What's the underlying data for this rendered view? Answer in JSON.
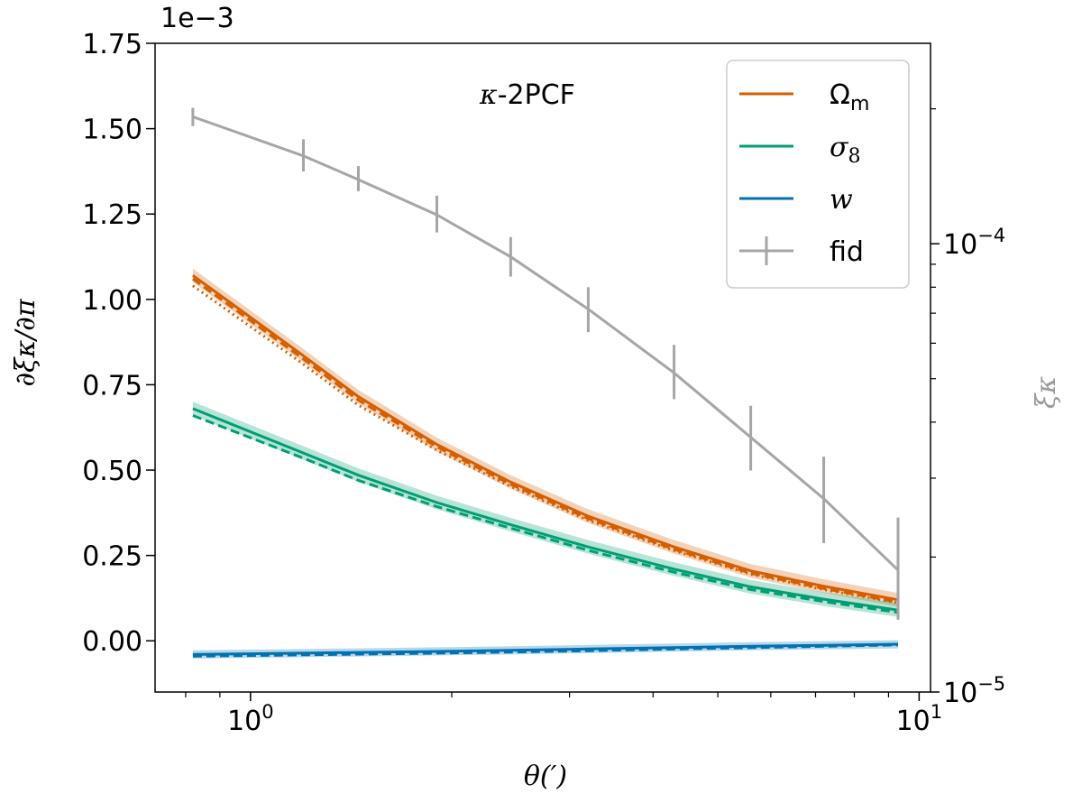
{
  "chart_data": {
    "type": "line",
    "title": "κ-2PCF",
    "title_parts": {
      "symbol": "κ",
      "rest": "-2PCF"
    },
    "xlabel": "θ(′)",
    "ylabel": "∂ξκ/∂π",
    "ylabel_right": "ξκ",
    "y_scale_label": "1e−3",
    "x_scale": "log",
    "xlim": [
      0.72,
      10.4
    ],
    "ylim": [
      -0.00015,
      0.00175
    ],
    "y_right_scale": "log",
    "y_right_lim": [
      1e-05,
      0.00028
    ],
    "x_ticks": [
      {
        "value": 1,
        "label": "10",
        "exp": "0"
      },
      {
        "value": 10,
        "label": "10",
        "exp": "1"
      }
    ],
    "x_minor_ticks": [
      0.8,
      0.9,
      2,
      3,
      4,
      5,
      6,
      7,
      8,
      9
    ],
    "y_ticks": [
      {
        "value": 0.0,
        "label": "0.00"
      },
      {
        "value": 0.00025,
        "label": "0.25"
      },
      {
        "value": 0.0005,
        "label": "0.50"
      },
      {
        "value": 0.00075,
        "label": "0.75"
      },
      {
        "value": 0.001,
        "label": "1.00"
      },
      {
        "value": 0.00125,
        "label": "1.25"
      },
      {
        "value": 0.0015,
        "label": "1.50"
      },
      {
        "value": 0.00175,
        "label": "1.75"
      }
    ],
    "y_right_ticks": [
      {
        "value": 1e-05,
        "label": "10",
        "exp": "−5"
      },
      {
        "value": 0.0001,
        "label": "10",
        "exp": "−4"
      }
    ],
    "y_right_minor_ticks": [
      2e-05,
      3e-05,
      4e-05,
      5e-05,
      6e-05,
      7e-05,
      8e-05,
      9e-05,
      0.0002
    ],
    "x": [
      0.82,
      1.2,
      1.45,
      1.9,
      2.45,
      3.2,
      4.3,
      5.6,
      7.2,
      9.3
    ],
    "legend": [
      {
        "name": "Ω",
        "sub": "m",
        "color": "#d55e00",
        "italic": false
      },
      {
        "name": "σ",
        "sub": "8",
        "color": "#009e73",
        "italic": true
      },
      {
        "name": "w",
        "sub": "",
        "color": "#0072b2",
        "italic": true
      },
      {
        "name": "fid",
        "sub": "",
        "color": "#a6a6a6",
        "italic": false
      }
    ],
    "series": [
      {
        "name": "Ωm",
        "color": "#d55e00",
        "band_halfwidth": 2e-05,
        "solid": [
          0.00107,
          0.000835,
          0.000715,
          0.000575,
          0.000465,
          0.000365,
          0.000275,
          0.000205,
          0.00016,
          0.00012
        ],
        "dashed": [
          0.00106,
          0.000825,
          0.000705,
          0.000568,
          0.000458,
          0.000358,
          0.000268,
          0.000198,
          0.000153,
          0.000113
        ],
        "dotted": [
          0.00104,
          0.00081,
          0.00069,
          0.000558,
          0.000452,
          0.000353,
          0.000264,
          0.000195,
          0.00015,
          0.000111
        ]
      },
      {
        "name": "σ8",
        "color": "#009e73",
        "band_halfwidth": 2e-05,
        "solid": [
          0.00068,
          0.00055,
          0.000485,
          0.000405,
          0.00034,
          0.000275,
          0.00021,
          0.000158,
          0.000122,
          9e-05
        ],
        "dashed": [
          0.00066,
          0.000535,
          0.00047,
          0.000393,
          0.00033,
          0.000265,
          0.000201,
          0.00015,
          0.000115,
          8.3e-05
        ]
      },
      {
        "name": "w",
        "color": "#0072b2",
        "band_halfwidth": 1.2e-05,
        "solid": [
          -4e-05,
          -3.6e-05,
          -3.4e-05,
          -3.1e-05,
          -2.8e-05,
          -2.4e-05,
          -2e-05,
          -1.6e-05,
          -1.3e-05,
          -1e-05
        ],
        "dashed": [
          -4.5e-05,
          -4.1e-05,
          -3.9e-05,
          -3.6e-05,
          -3.3e-05,
          -2.9e-05,
          -2.4e-05,
          -2e-05,
          -1.6e-05,
          -1.2e-05
        ]
      },
      {
        "name": "fid",
        "color": "#a6a6a6",
        "axis": "right",
        "values": [
          0.000192,
          0.000157,
          0.000139,
          0.000116,
          9.35e-05,
          7.15e-05,
          5.15e-05,
          3.7e-05,
          2.7e-05,
          1.87e-05
        ],
        "err_low": [
          0.000183,
          0.000145,
          0.000131,
          0.000106,
          8.45e-05,
          6.35e-05,
          4.5e-05,
          3.12e-05,
          2.15e-05,
          1.45e-05
        ],
        "err_high": [
          0.000201,
          0.000171,
          0.000149,
          0.000128,
          0.0001035,
          8e-05,
          5.95e-05,
          4.35e-05,
          3.35e-05,
          2.45e-05
        ]
      }
    ]
  }
}
